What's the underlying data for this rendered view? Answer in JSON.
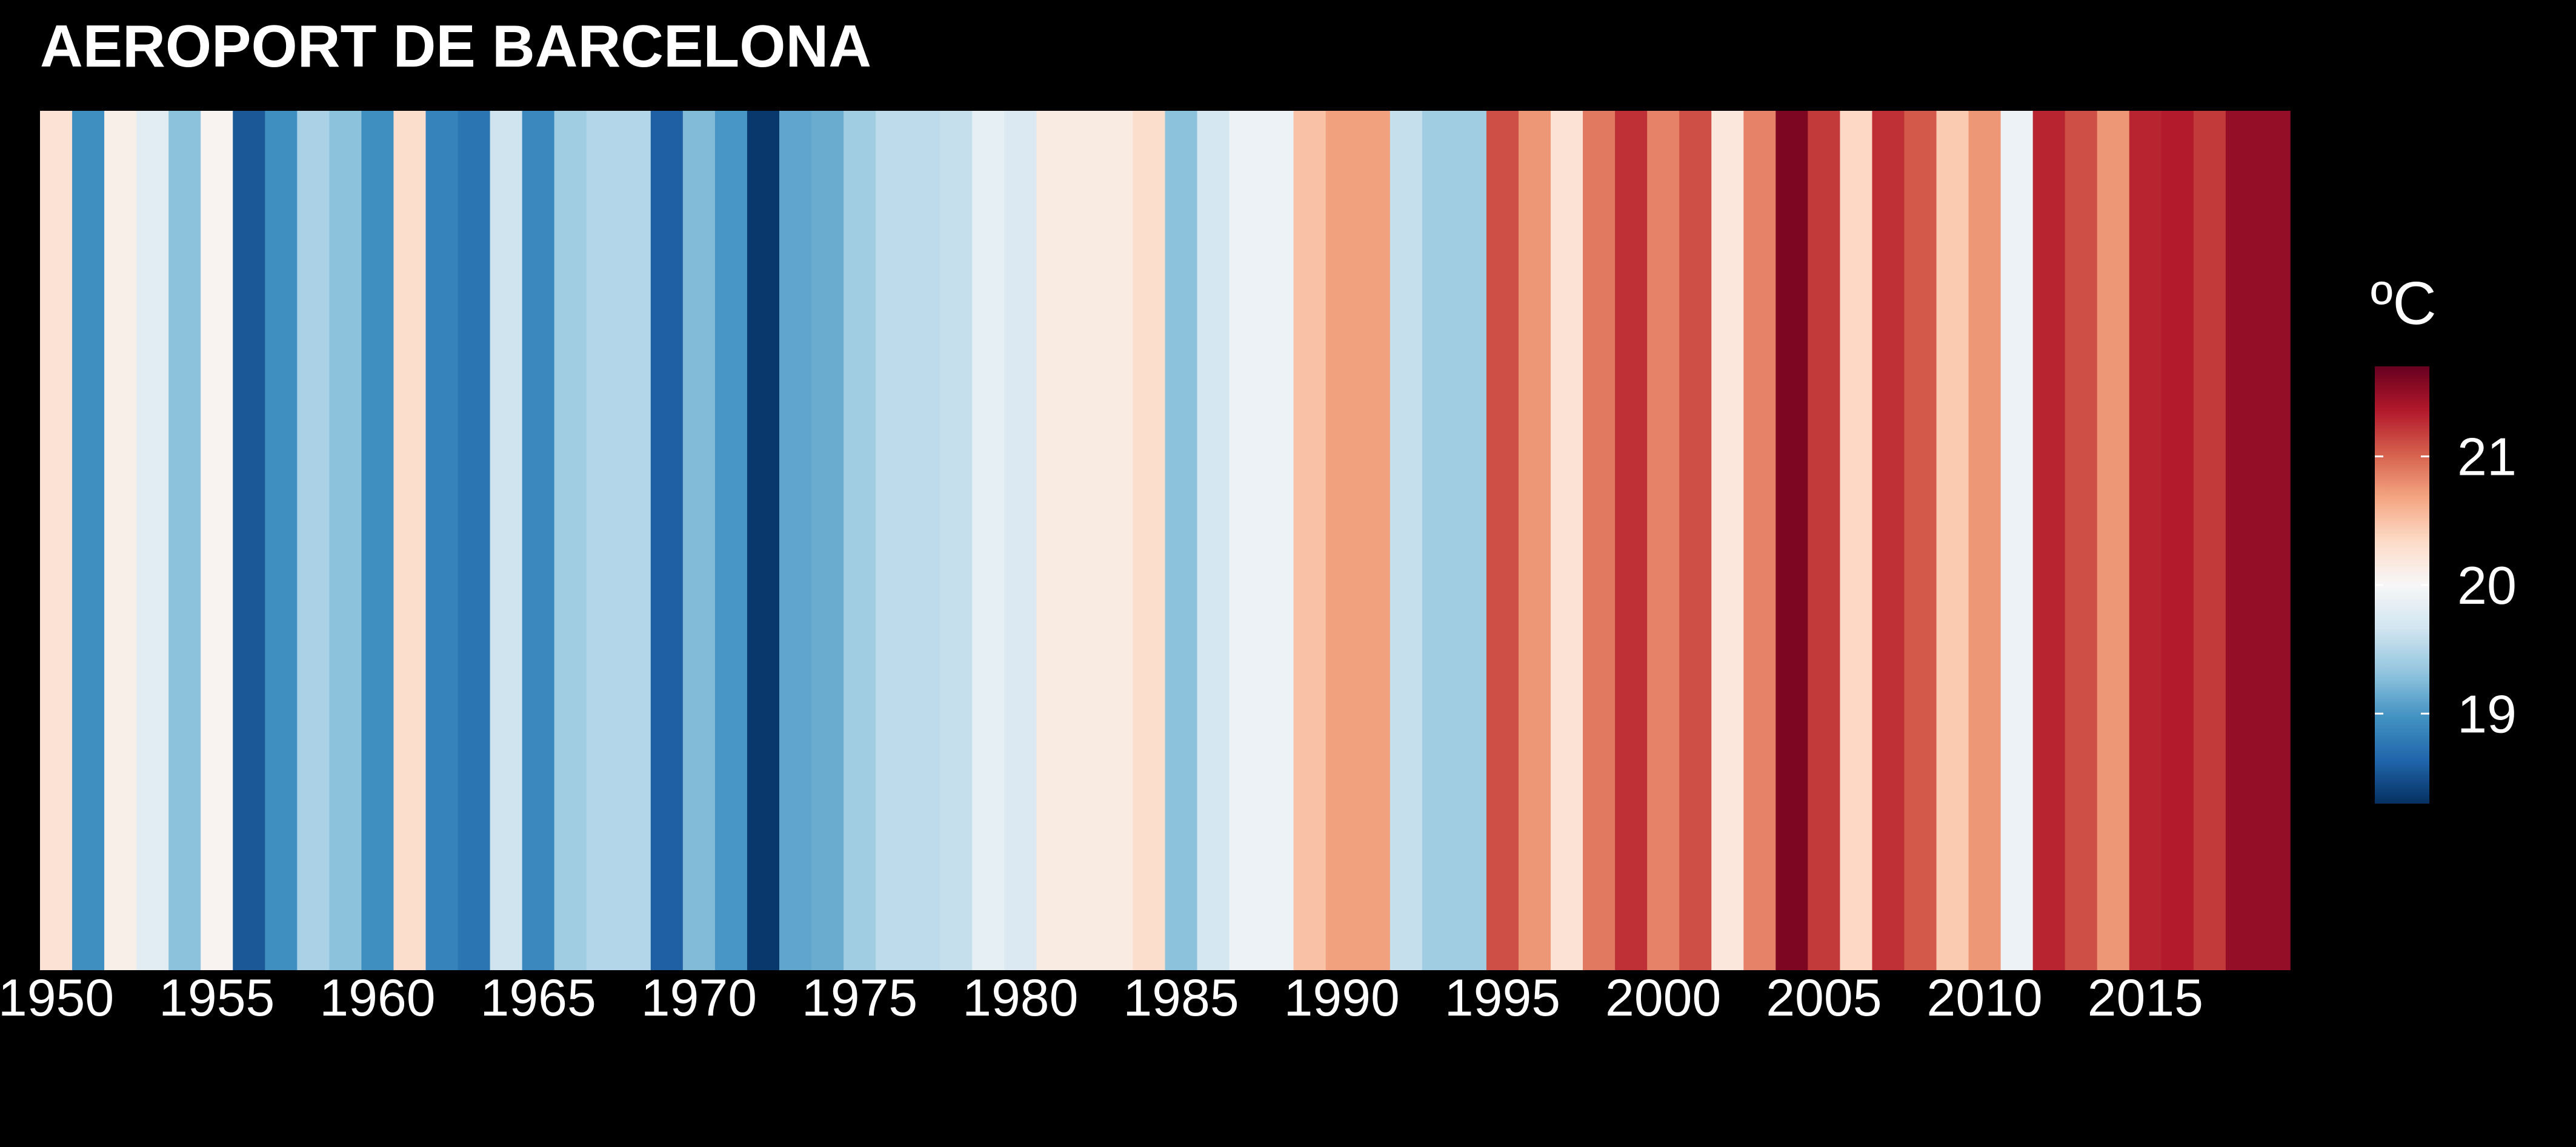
{
  "chart_data": {
    "type": "heatmap",
    "title": "AEROPORT DE BARCELONA",
    "xlabel": "",
    "ylabel": "",
    "x_ticks": [
      1950,
      1955,
      1960,
      1965,
      1970,
      1975,
      1980,
      1985,
      1990,
      1995,
      2000,
      2005,
      2010,
      2015
    ],
    "years": [
      1950,
      1951,
      1952,
      1953,
      1954,
      1955,
      1956,
      1957,
      1958,
      1959,
      1960,
      1961,
      1962,
      1963,
      1964,
      1965,
      1966,
      1967,
      1968,
      1969,
      1970,
      1971,
      1972,
      1973,
      1974,
      1975,
      1976,
      1977,
      1978,
      1979,
      1980,
      1981,
      1982,
      1983,
      1984,
      1985,
      1986,
      1987,
      1988,
      1989,
      1990,
      1991,
      1992,
      1993,
      1994,
      1995,
      1996,
      1997,
      1998,
      1999,
      2000,
      2001,
      2002,
      2003,
      2004,
      2005,
      2006,
      2007,
      2008,
      2009,
      2010,
      2011,
      2012,
      2013,
      2014,
      2015,
      2016,
      2017,
      2018,
      2019
    ],
    "values": [
      20.25,
      18.95,
      20.1,
      19.8,
      19.3,
      20.05,
      18.55,
      18.95,
      19.45,
      19.3,
      18.95,
      20.3,
      18.85,
      18.75,
      19.65,
      18.9,
      19.4,
      19.5,
      19.5,
      18.6,
      19.25,
      19.0,
      18.35,
      19.1,
      19.15,
      19.4,
      19.55,
      19.55,
      19.6,
      19.85,
      19.75,
      20.15,
      20.15,
      20.15,
      20.3,
      19.3,
      19.7,
      19.9,
      19.9,
      20.5,
      20.7,
      20.7,
      19.6,
      19.4,
      19.4,
      21.1,
      20.75,
      20.25,
      20.9,
      21.25,
      20.85,
      21.1,
      20.2,
      20.85,
      21.6,
      21.2,
      20.35,
      21.25,
      21.05,
      20.45,
      20.75,
      19.9,
      21.3,
      21.1,
      20.75,
      21.3,
      21.35,
      21.2,
      21.5,
      21.5
    ],
    "legend": {
      "title": "ºC",
      "ticks": [
        19,
        20,
        21
      ],
      "range": [
        18.3,
        21.7
      ],
      "placement": "right"
    },
    "colors": {
      "background": "#000000",
      "scale": [
        "#053061",
        "#2166ac",
        "#4393c3",
        "#92c5de",
        "#d1e5f0",
        "#f7f7f7",
        "#fddbc7",
        "#f4a582",
        "#d6604d",
        "#b2182b",
        "#67001f"
      ]
    },
    "grid": false
  }
}
